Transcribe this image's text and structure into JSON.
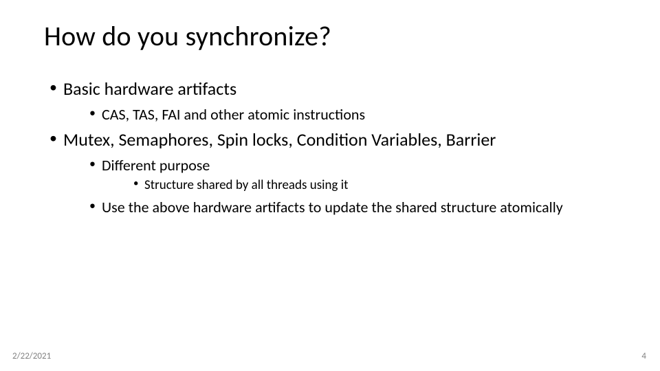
{
  "title": "How do you synchronize?",
  "bullets": {
    "b1": "Basic hardware artifacts",
    "b1_1": "CAS, TAS, FAI and other atomic instructions",
    "b2": "Mutex, Semaphores, Spin locks, Condition Variables, Barrier",
    "b2_1": "Different purpose",
    "b2_1_1": "Structure shared by all threads using it",
    "b2_2": "Use the above hardware artifacts to update the shared structure atomically"
  },
  "footer": {
    "date": "2/22/2021",
    "page": "4"
  },
  "style": {
    "background": "#ffffff",
    "text_color": "#000000",
    "footer_color": "#808080",
    "title_fontsize": 40,
    "lvl1_fontsize": 26,
    "lvl2_fontsize": 22,
    "lvl3_fontsize": 19,
    "footer_fontsize": 13
  }
}
